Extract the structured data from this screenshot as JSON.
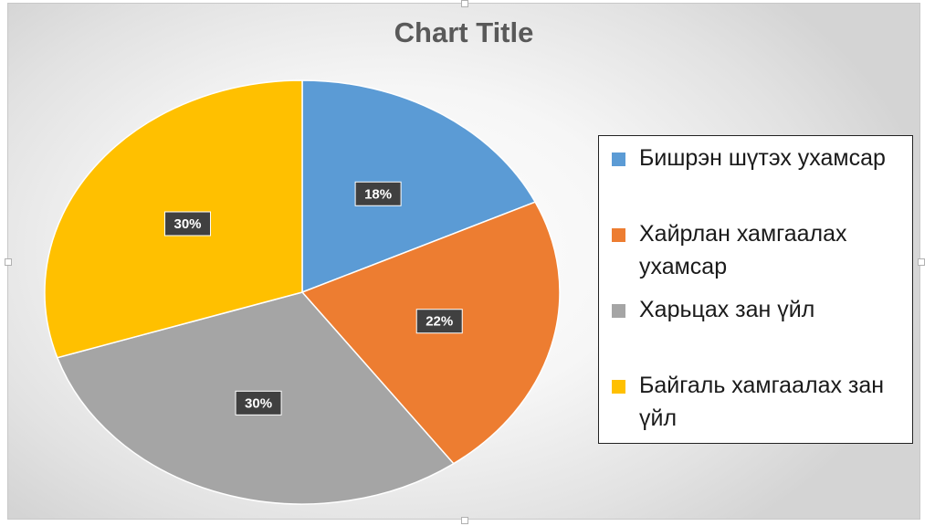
{
  "chart_data": {
    "type": "pie",
    "title": "Chart Title",
    "categories": [
      "Бишрэн шүтэх ухамсар",
      "Хайрлан хамгаалах ухамсар",
      "Харьцах зан үйл",
      "Байгаль хамгаалах зан үйл"
    ],
    "values": [
      18,
      22,
      30,
      30
    ],
    "data_labels": [
      "18%",
      "22%",
      "30%",
      "30%"
    ],
    "colors": [
      "#5b9bd5",
      "#ed7d31",
      "#a5a5a5",
      "#ffc000"
    ],
    "legend_position": "right",
    "data_label_bg": "#404040"
  }
}
